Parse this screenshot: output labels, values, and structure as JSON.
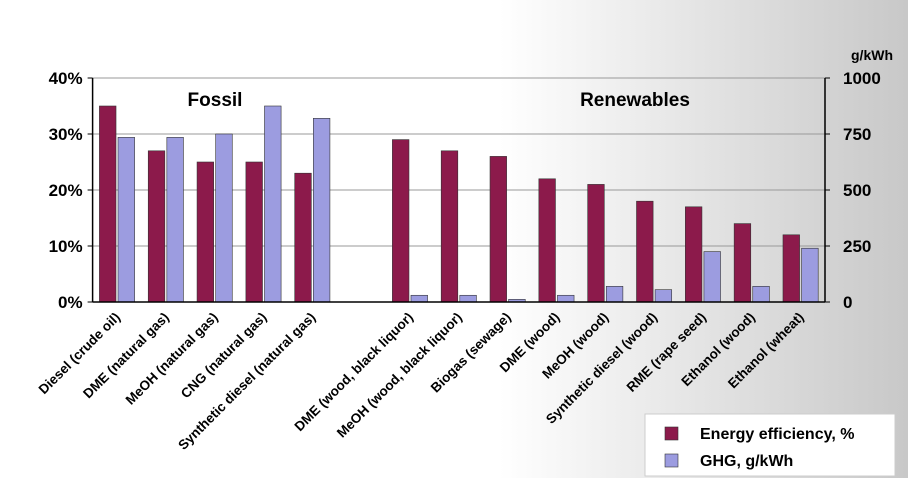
{
  "chart_data": {
    "type": "bar",
    "categories": [
      "Diesel (crude oil)",
      "DME (natural gas)",
      "MeOH (natural gas)",
      "CNG (natural gas)",
      "Synthetic diesel (natural gas)",
      null,
      "DME (wood, black liquor)",
      "MeOH (wood, black liquor)",
      "Biogas (sewage)",
      "DME (wood)",
      "MeOH (wood)",
      "Synthetic diesel (wood)",
      "RME (rape seed)",
      "Ethanol (wood)",
      "Ethanol (wheat)"
    ],
    "series": [
      {
        "name": "Energy efficiency, %",
        "color": "#8c1a4b",
        "values": [
          35,
          27,
          25,
          25,
          23,
          null,
          29,
          27,
          26,
          22,
          21,
          18,
          17,
          14,
          12
        ]
      },
      {
        "name": "GHG, g/kWh",
        "color": "#9c9ce0",
        "axis": "y2",
        "values": [
          735,
          735,
          750,
          875,
          820,
          null,
          30,
          30,
          12,
          30,
          70,
          55,
          225,
          70,
          240
        ]
      }
    ],
    "ylim": [
      0,
      40
    ],
    "yticks": [
      {
        "value": 0,
        "label": "0%"
      },
      {
        "value": 10,
        "label": "10%"
      },
      {
        "value": 20,
        "label": "20%"
      },
      {
        "value": 30,
        "label": "30%"
      },
      {
        "value": 40,
        "label": "40%"
      }
    ],
    "y2lim": [
      0,
      1000
    ],
    "y2ticks": [
      0,
      250,
      500,
      750,
      1000
    ],
    "y2label": "g/kWh",
    "annotations": [
      "Fossil",
      "Renewables"
    ],
    "grid": true,
    "legend": "bottom-right"
  }
}
